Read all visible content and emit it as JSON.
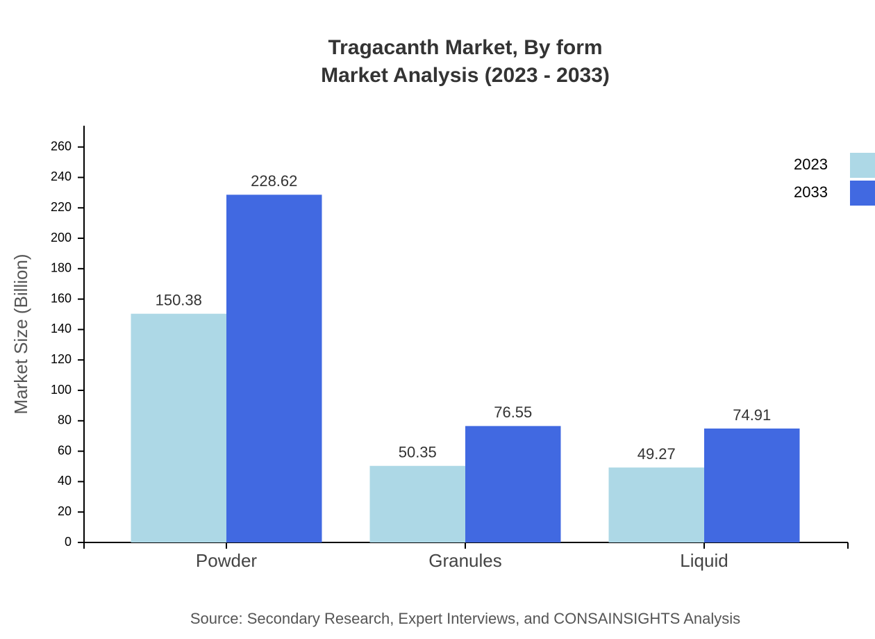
{
  "chart_data": {
    "type": "bar",
    "title": "Tragacanth Market, By form",
    "subtitle": "Market Analysis (2023 - 2033)",
    "y_label": "Market Size (Billion)",
    "source": "Source: Secondary Research, Expert Interviews, and CONSAINSIGHTS Analysis",
    "categories": [
      "Powder",
      "Granules",
      "Liquid"
    ],
    "series": [
      {
        "name": "2023",
        "color": "#add8e6",
        "values": [
          150.38,
          50.35,
          49.27
        ]
      },
      {
        "name": "2033",
        "color": "#4169e1",
        "values": [
          228.62,
          76.55,
          74.91
        ]
      }
    ],
    "ylim": [
      0,
      274
    ],
    "yticks": [
      0,
      20,
      40,
      60,
      80,
      100,
      120,
      140,
      160,
      180,
      200,
      220,
      240,
      260
    ],
    "legend": "top-right"
  }
}
